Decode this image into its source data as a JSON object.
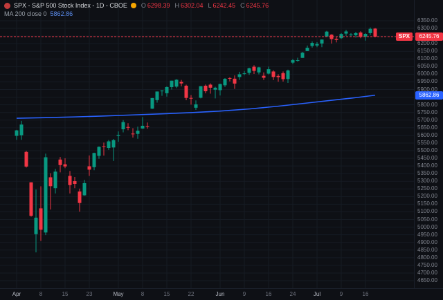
{
  "toolbar": {
    "title": "SPX - S&P 500 Stock Index - 1D - CBOE",
    "ohlc": {
      "o_label": "O",
      "o": "6298.39",
      "h_label": "H",
      "h": "6302.04",
      "l_label": "L",
      "l": "6242.45",
      "c_label": "C",
      "c": "6245.76"
    },
    "indicator": {
      "label": "MA 200 close 0",
      "value": "5862.86"
    }
  },
  "labels": {
    "symbol_badge": "SPX",
    "last_price": "6245.76",
    "ma_value": "5862.86"
  },
  "colors": {
    "background": "#0e1015",
    "grid": "#161b24",
    "up": "#089981",
    "down": "#f23645",
    "ma_line": "#2962ff",
    "last_price_line": "#f23645",
    "axis_text": "#81858f"
  },
  "time_axis": {
    "ticks": [
      {
        "i": 0,
        "label": "Apr",
        "month": true
      },
      {
        "i": 5,
        "label": "8",
        "month": false
      },
      {
        "i": 10,
        "label": "15",
        "month": false
      },
      {
        "i": 15,
        "label": "23",
        "month": false
      },
      {
        "i": 21,
        "label": "May",
        "month": true
      },
      {
        "i": 26,
        "label": "8",
        "month": false
      },
      {
        "i": 31,
        "label": "15",
        "month": false
      },
      {
        "i": 36,
        "label": "22",
        "month": false
      },
      {
        "i": 42,
        "label": "Jun",
        "month": true
      },
      {
        "i": 47,
        "label": "9",
        "month": false
      },
      {
        "i": 52,
        "label": "16",
        "month": false
      },
      {
        "i": 57,
        "label": "24",
        "month": false
      },
      {
        "i": 62,
        "label": "Jul",
        "month": true
      },
      {
        "i": 67,
        "label": "9",
        "month": false
      },
      {
        "i": 72,
        "label": "16",
        "month": false
      }
    ]
  },
  "chart_data": {
    "type": "candlestick",
    "title": "SPX - S&P 500 Stock Index - 1D - CBOE",
    "symbol": "SPX",
    "interval": "1D",
    "exchange": "CBOE",
    "ylim": [
      4650,
      6350
    ],
    "y_tick_step": 50,
    "last_price": 6245.76,
    "last_ohlc": {
      "o": 6298.39,
      "h": 6302.04,
      "l": 6242.45,
      "c": 6245.76
    },
    "ma": {
      "name": "MA 200 close",
      "period": 200,
      "last_value": 5862.86,
      "color": "#2962ff",
      "points": [
        [
          0,
          5712
        ],
        [
          6,
          5716
        ],
        [
          12,
          5721
        ],
        [
          18,
          5727
        ],
        [
          24,
          5734
        ],
        [
          30,
          5741
        ],
        [
          36,
          5749
        ],
        [
          42,
          5759
        ],
        [
          48,
          5773
        ],
        [
          54,
          5791
        ],
        [
          60,
          5812
        ],
        [
          66,
          5833
        ],
        [
          70,
          5847
        ],
        [
          74,
          5862.86
        ]
      ]
    },
    "candles": [
      [
        "Apr 1",
        5597,
        5636,
        5571,
        5633
      ],
      [
        "Apr 2",
        5601,
        5695,
        5571,
        5671
      ],
      [
        "Apr 3",
        5492,
        5499,
        5390,
        5396
      ],
      [
        "Apr 4",
        5293,
        5293,
        5069,
        5074
      ],
      [
        "Apr 7",
        4954,
        5246,
        4835,
        5062
      ],
      [
        "Apr 8",
        5123,
        5267,
        4910,
        4983
      ],
      [
        "Apr 9",
        4965,
        5481,
        4948,
        5457
      ],
      [
        "Apr 10",
        5326,
        5353,
        5115,
        5268
      ],
      [
        "Apr 11",
        5255,
        5381,
        5220,
        5363
      ],
      [
        "Apr 14",
        5442,
        5459,
        5358,
        5406
      ],
      [
        "Apr 15",
        5411,
        5450,
        5386,
        5397
      ],
      [
        "Apr 16",
        5335,
        5367,
        5220,
        5275
      ],
      [
        "Apr 17",
        5301,
        5328,
        5255,
        5283
      ],
      [
        "Apr 21",
        5233,
        5252,
        5101,
        5158
      ],
      [
        "Apr 22",
        5208,
        5309,
        5206,
        5288
      ],
      [
        "Apr 23",
        5398,
        5469,
        5335,
        5376
      ],
      [
        "Apr 24",
        5392,
        5487,
        5372,
        5485
      ],
      [
        "Apr 25",
        5466,
        5528,
        5447,
        5525
      ],
      [
        "Apr 28",
        5529,
        5553,
        5468,
        5528
      ],
      [
        "Apr 29",
        5518,
        5570,
        5505,
        5561
      ],
      [
        "Apr 30",
        5521,
        5577,
        5433,
        5569
      ],
      [
        "May 1",
        5598,
        5626,
        5558,
        5604
      ],
      [
        "May 2",
        5640,
        5700,
        5620,
        5687
      ],
      [
        "May 5",
        5655,
        5680,
        5634,
        5650
      ],
      [
        "May 6",
        5612,
        5647,
        5586,
        5607
      ],
      [
        "May 7",
        5610,
        5657,
        5578,
        5631
      ],
      [
        "May 8",
        5645,
        5720,
        5643,
        5663
      ],
      [
        "May 9",
        5661,
        5684,
        5644,
        5659
      ],
      [
        "May 12",
        5775,
        5845,
        5773,
        5844
      ],
      [
        "May 13",
        5831,
        5887,
        5814,
        5887
      ],
      [
        "May 14",
        5889,
        5897,
        5859,
        5893
      ],
      [
        "May 15",
        5876,
        5921,
        5854,
        5916
      ],
      [
        "May 16",
        5916,
        5958,
        5900,
        5958
      ],
      [
        "May 19",
        5919,
        5968,
        5910,
        5964
      ],
      [
        "May 20",
        5950,
        5963,
        5921,
        5940
      ],
      [
        "May 21",
        5925,
        5932,
        5830,
        5845
      ],
      [
        "May 22",
        5845,
        5864,
        5801,
        5842
      ],
      [
        "May 23",
        5781,
        5829,
        5767,
        5803
      ],
      [
        "May 27",
        5846,
        5922,
        5842,
        5922
      ],
      [
        "May 28",
        5925,
        5933,
        5875,
        5889
      ],
      [
        "May 29",
        5932,
        5940,
        5873,
        5912
      ],
      [
        "May 30",
        5899,
        5918,
        5842,
        5912
      ],
      [
        "Jun 2",
        5896,
        5938,
        5861,
        5936
      ],
      [
        "Jun 3",
        5928,
        5975,
        5917,
        5970
      ],
      [
        "Jun 4",
        5975,
        5981,
        5953,
        5971
      ],
      [
        "Jun 5",
        5971,
        5992,
        5904,
        5939
      ],
      [
        "Jun 6",
        5982,
        6016,
        5963,
        6000
      ],
      [
        "Jun 9",
        6002,
        6021,
        5994,
        6006
      ],
      [
        "Jun 10",
        6009,
        6043,
        5996,
        6039
      ],
      [
        "Jun 11",
        6049,
        6059,
        6002,
        6022
      ],
      [
        "Jun 12",
        6012,
        6048,
        5999,
        6045
      ],
      [
        "Jun 13",
        5990,
        6012,
        5963,
        5977
      ],
      [
        "Jun 16",
        6004,
        6050,
        5999,
        6033
      ],
      [
        "Jun 17",
        6018,
        6026,
        5962,
        5982
      ],
      [
        "Jun 18",
        5989,
        6000,
        5951,
        5981
      ],
      [
        "Jun 20",
        6007,
        6018,
        5952,
        5968
      ],
      [
        "Jun 23",
        5969,
        6030,
        5943,
        6025
      ],
      [
        "Jun 24",
        6076,
        6101,
        6067,
        6092
      ],
      [
        "Jun 25",
        6091,
        6108,
        6082,
        6092
      ],
      [
        "Jun 26",
        6107,
        6146,
        6107,
        6141
      ],
      [
        "Jun 27",
        6152,
        6188,
        6151,
        6173
      ],
      [
        "Jun 30",
        6185,
        6215,
        6174,
        6205
      ],
      [
        "Jul 1",
        6188,
        6210,
        6177,
        6198
      ],
      [
        "Jul 2",
        6201,
        6228,
        6177,
        6227
      ],
      [
        "Jul 3",
        6247,
        6284,
        6246,
        6279
      ],
      [
        "Jul 7",
        6259,
        6262,
        6201,
        6230
      ],
      [
        "Jul 8",
        6232,
        6242,
        6208,
        6225
      ],
      [
        "Jul 9",
        6236,
        6269,
        6231,
        6263
      ],
      [
        "Jul 10",
        6266,
        6290,
        6251,
        6280
      ],
      [
        "Jul 11",
        6255,
        6269,
        6244,
        6260
      ],
      [
        "Jul 14",
        6255,
        6277,
        6240,
        6269
      ],
      [
        "Jul 15",
        6273,
        6281,
        6236,
        6244
      ],
      [
        "Jul 16",
        6245,
        6269,
        6220,
        6264
      ],
      [
        "Jul 17",
        6269,
        6306,
        6256,
        6297
      ],
      [
        "Jul 18",
        6298.39,
        6302.04,
        6242.45,
        6245.76
      ]
    ]
  }
}
